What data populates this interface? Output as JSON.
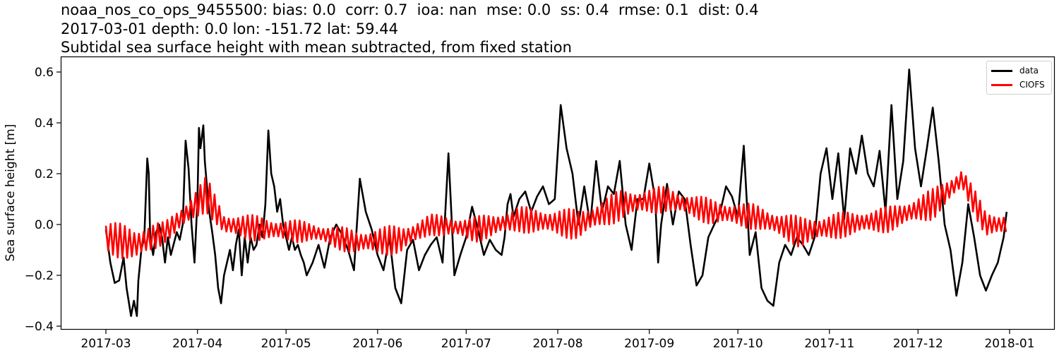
{
  "title": {
    "line1": "noaa_nos_co_ops_9455500: bias: 0.0  corr: 0.7  ioa: nan  mse: 0.0  ss: 0.4  rmse: 0.1  dist: 0.4",
    "line2": "2017-03-01 depth: 0.0 lon: -151.72 lat: 59.44",
    "line3": "Subtidal sea surface height with mean subtracted, from fixed station"
  },
  "legend": {
    "items": [
      {
        "label": "data",
        "color": "#000000"
      },
      {
        "label": "CIOFS",
        "color": "#ff0000"
      }
    ]
  },
  "chart_data": {
    "type": "line",
    "title": "noaa_nos_co_ops_9455500: bias: 0.0  corr: 0.7  ioa: nan  mse: 0.0  ss: 0.4  rmse: 0.1  dist: 0.4 / 2017-03-01 depth: 0.0 lon: -151.72 lat: 59.44 / Subtidal sea surface height with mean subtracted, from fixed station",
    "xlabel": "",
    "ylabel": "Sea surface height [m]",
    "ylim": [
      -0.41,
      0.66
    ],
    "xlim": [
      "2017-02-15",
      "2018-01-15"
    ],
    "grid": false,
    "legend_position": "upper right",
    "x_ticks": [
      "2017-03",
      "2017-04",
      "2017-05",
      "2017-06",
      "2017-07",
      "2017-08",
      "2017-09",
      "2017-10",
      "2017-11",
      "2017-12",
      "2018-01"
    ],
    "y_ticks": [
      -0.4,
      -0.2,
      0.0,
      0.2,
      0.4,
      0.6
    ],
    "y_tick_labels": [
      "−0.4",
      "−0.2",
      "0.0",
      "0.2",
      "0.4",
      "0.6"
    ],
    "x_unit": "days since 2017-03-01",
    "series": [
      {
        "name": "data",
        "color": "#000000",
        "x": [
          0,
          1.5,
          3,
          4.5,
          6,
          7,
          8.5,
          9.5,
          10.5,
          11,
          12,
          13,
          14,
          14.5,
          15,
          16,
          17,
          18,
          19,
          20,
          21,
          22,
          24,
          25,
          26,
          27,
          28,
          29,
          30,
          31,
          31.5,
          32,
          33,
          33.5,
          34,
          35,
          36,
          37,
          38,
          39,
          40,
          41,
          42,
          43,
          44,
          45,
          46,
          47,
          48,
          49,
          50,
          51,
          52,
          53,
          54,
          55,
          56,
          57,
          58,
          59,
          60,
          61,
          62,
          63,
          64,
          65,
          66,
          67,
          68,
          70,
          72,
          74,
          76,
          78,
          80,
          82,
          84,
          86,
          88,
          90,
          92,
          94,
          96,
          98,
          100,
          102,
          104,
          106,
          108,
          110,
          112,
          114,
          116,
          118,
          120,
          122,
          124,
          126,
          128,
          130,
          132,
          134,
          135,
          136,
          137,
          138,
          140,
          142,
          144,
          146,
          148,
          150,
          152,
          154,
          156,
          158,
          160,
          162,
          164,
          166,
          168,
          170,
          172,
          174,
          176,
          178,
          180,
          182,
          184,
          186,
          187,
          188,
          190,
          192,
          194,
          196,
          198,
          200,
          202,
          204,
          206,
          208,
          210,
          212,
          214,
          216,
          218,
          220,
          222,
          224,
          226,
          228,
          230,
          232,
          234,
          236,
          238,
          240,
          242,
          244,
          246,
          248,
          250,
          252,
          254,
          256,
          258,
          260,
          262,
          264,
          266,
          268,
          270,
          272,
          274,
          276,
          278,
          280,
          282,
          284,
          286,
          288,
          290,
          292,
          294,
          296,
          298,
          300,
          302,
          304,
          305
        ],
        "values": [
          -0.02,
          -0.15,
          -0.23,
          -0.22,
          -0.13,
          -0.25,
          -0.36,
          -0.3,
          -0.36,
          -0.22,
          -0.1,
          -0.05,
          0.26,
          0.2,
          -0.05,
          -0.12,
          -0.03,
          0.0,
          -0.05,
          -0.15,
          -0.05,
          -0.12,
          -0.03,
          -0.06,
          0.0,
          0.33,
          0.22,
          0.0,
          -0.15,
          0.1,
          0.38,
          0.3,
          0.39,
          0.25,
          0.18,
          0.05,
          -0.03,
          -0.12,
          -0.25,
          -0.31,
          -0.2,
          -0.15,
          -0.1,
          -0.18,
          -0.08,
          -0.02,
          -0.2,
          -0.05,
          -0.15,
          -0.05,
          -0.1,
          -0.08,
          0.0,
          -0.05,
          0.08,
          0.37,
          0.2,
          0.15,
          0.05,
          0.1,
          0.0,
          -0.05,
          -0.1,
          -0.05,
          -0.1,
          -0.08,
          -0.12,
          -0.15,
          -0.2,
          -0.15,
          -0.08,
          -0.17,
          -0.05,
          0.0,
          -0.04,
          -0.1,
          -0.18,
          0.18,
          0.05,
          -0.02,
          -0.12,
          -0.18,
          -0.05,
          -0.25,
          -0.31,
          -0.1,
          -0.06,
          -0.18,
          -0.12,
          -0.08,
          -0.05,
          -0.15,
          0.28,
          -0.2,
          -0.12,
          -0.05,
          0.07,
          -0.02,
          -0.12,
          -0.06,
          -0.1,
          -0.12,
          -0.05,
          0.08,
          0.12,
          0.03,
          0.1,
          0.13,
          0.05,
          0.11,
          0.15,
          0.08,
          0.1,
          0.47,
          0.3,
          0.2,
          0.0,
          0.15,
          0.0,
          0.25,
          0.05,
          0.15,
          0.12,
          0.25,
          0.0,
          -0.1,
          0.1,
          0.1,
          0.24,
          0.1,
          -0.15,
          0.0,
          0.16,
          0.0,
          0.13,
          0.1,
          -0.08,
          -0.24,
          -0.2,
          -0.05,
          0.0,
          0.05,
          0.15,
          0.11,
          0.03,
          0.31,
          -0.12,
          -0.03,
          -0.25,
          -0.3,
          -0.32,
          -0.15,
          -0.08,
          -0.12,
          -0.05,
          -0.08,
          -0.12,
          -0.05,
          0.2,
          0.3,
          0.1,
          0.28,
          0.02,
          0.3,
          0.2,
          0.35,
          0.2,
          0.15,
          0.29,
          0.05,
          0.47,
          0.1,
          0.25,
          0.61,
          0.3,
          0.15,
          0.3,
          0.46,
          0.25,
          0.0,
          -0.1,
          -0.28,
          -0.15,
          0.08,
          -0.05,
          -0.2,
          -0.26,
          -0.2,
          -0.15,
          -0.05,
          0.05
        ]
      },
      {
        "name": "CIOFS",
        "color": "#ff0000",
        "x": [
          0,
          10,
          20,
          28,
          34,
          40,
          55,
          70,
          85,
          100,
          110,
          125,
          140,
          160,
          175,
          190,
          205,
          220,
          235,
          250,
          265,
          280,
          290,
          298,
          305
        ],
        "envelope_mean": [
          -0.05,
          -0.08,
          -0.03,
          0.05,
          0.12,
          0.0,
          -0.02,
          -0.03,
          -0.07,
          -0.06,
          0.0,
          -0.02,
          0.02,
          0.0,
          0.08,
          0.1,
          0.05,
          0.03,
          -0.03,
          0.0,
          0.02,
          0.08,
          0.18,
          0.0,
          0.0
        ],
        "envelope_amplitude": [
          0.06,
          0.08,
          0.04,
          0.06,
          0.07,
          0.05,
          0.05,
          0.04,
          0.05,
          0.06,
          0.04,
          0.05,
          0.05,
          0.06,
          0.06,
          0.05,
          0.05,
          0.05,
          0.06,
          0.05,
          0.05,
          0.06,
          0.05,
          0.05,
          0.05
        ],
        "oscillation_period_days": 1.6
      }
    ]
  }
}
